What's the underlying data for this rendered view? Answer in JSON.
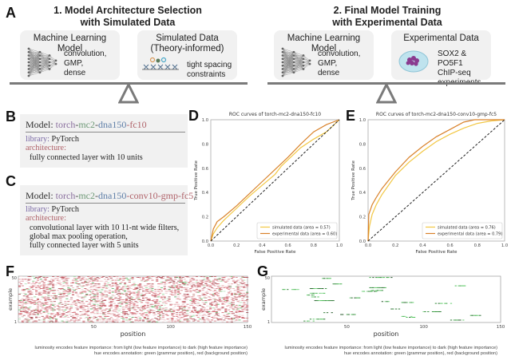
{
  "panel_letters": {
    "A": "A",
    "B": "B",
    "C": "C",
    "D": "D",
    "E": "E",
    "F": "F",
    "G": "G"
  },
  "stage1": {
    "title_line1": "1. Model Architecture Selection",
    "title_line2": "with Simulated Data",
    "model_box": {
      "title": "Machine Learning Model",
      "icon": "neural-network-icon",
      "lines": [
        "convolution,",
        "GMP,",
        "dense"
      ]
    },
    "data_box": {
      "title_line1": "Simulated Data",
      "title_line2": "(Theory-informed)",
      "icon": "dna-motifs-icon",
      "lines": [
        "tight spacing",
        "constraints"
      ]
    }
  },
  "stage2": {
    "title_line1": "2. Final Model Training",
    "title_line2": "with Experimental Data",
    "model_box": {
      "title": "Machine Learning Model",
      "icon": "neural-network-icon",
      "lines": [
        "convolution,",
        "GMP,",
        "dense"
      ]
    },
    "data_box": {
      "title": "Experimental Data",
      "icon": "cell-icon",
      "lines": [
        "SOX2 & PO5F1",
        "ChIP-seq",
        "experiments"
      ]
    }
  },
  "model_b": {
    "prefix": "Model: ",
    "name_parts": [
      {
        "text": "torch",
        "color": "#8a6f9e"
      },
      {
        "text": "-",
        "color": "#444444"
      },
      {
        "text": "mc2",
        "color": "#6f9a78"
      },
      {
        "text": "-",
        "color": "#444444"
      },
      {
        "text": "dna150",
        "color": "#5f7fa8"
      },
      {
        "text": "-fc10",
        "color": "#b0636a"
      }
    ],
    "library_key": "library:",
    "library_value": "PyTorch",
    "architecture_key": "architecture:",
    "architecture_lines": [
      "fully connected layer with 10 units"
    ]
  },
  "model_c": {
    "prefix": "Model: ",
    "name_parts": [
      {
        "text": "torch",
        "color": "#8a6f9e"
      },
      {
        "text": "-",
        "color": "#444444"
      },
      {
        "text": "mc2",
        "color": "#6f9a78"
      },
      {
        "text": "-",
        "color": "#444444"
      },
      {
        "text": "dna150",
        "color": "#5f7fa8"
      },
      {
        "text": "-conv10-gmp-fc5",
        "color": "#b0636a"
      }
    ],
    "library_key": "library:",
    "library_value": "PyTorch",
    "architecture_key": "architecture:",
    "architecture_lines": [
      "convolutional layer with 10 11-nt wide filters,",
      "global max pooling operation,",
      "fully connected layer with 5 units"
    ]
  },
  "chart_data": [
    {
      "id": "D",
      "type": "line",
      "title": "ROC curves of torch-mc2-dna150-fc10",
      "xlabel": "False Positive Rate",
      "ylabel": "True Positive Rate",
      "xlim": [
        0,
        1
      ],
      "ylim": [
        0,
        1
      ],
      "xticks": [
        "0.0",
        "0.2",
        "0.4",
        "0.6",
        "0.8",
        "1.0"
      ],
      "yticks": [
        "0.0",
        "0.2",
        "0.4",
        "0.6",
        "0.8",
        "1.0"
      ],
      "legend_position": "bottom-right",
      "grid": false,
      "series": [
        {
          "name": "simulated data (area = 0.57)",
          "color": "#f2c744",
          "x": [
            0,
            0.02,
            0.05,
            0.1,
            0.2,
            0.3,
            0.4,
            0.5,
            0.55,
            0.6,
            0.7,
            0.8,
            0.9,
            1.0
          ],
          "y": [
            0,
            0.06,
            0.11,
            0.17,
            0.27,
            0.37,
            0.46,
            0.55,
            0.62,
            0.67,
            0.77,
            0.84,
            0.9,
            1.0
          ]
        },
        {
          "name": "experimental data (area = 0.60)",
          "color": "#d9822b",
          "x": [
            0,
            0.02,
            0.05,
            0.1,
            0.2,
            0.3,
            0.4,
            0.5,
            0.6,
            0.7,
            0.8,
            0.9,
            1.0
          ],
          "y": [
            0,
            0.1,
            0.16,
            0.2,
            0.29,
            0.39,
            0.49,
            0.59,
            0.69,
            0.8,
            0.9,
            0.96,
            1.0
          ]
        },
        {
          "name": "chance",
          "color": "#222222",
          "dashed": true,
          "x": [
            0,
            1
          ],
          "y": [
            0,
            1
          ]
        }
      ]
    },
    {
      "id": "E",
      "type": "line",
      "title": "ROC curves of torch-mc2-dna150-conv10-gmp-fc5",
      "xlabel": "False Positive Rate",
      "ylabel": "True Positive Rate",
      "xlim": [
        0,
        1
      ],
      "ylim": [
        0,
        1
      ],
      "xticks": [
        "0.0",
        "0.2",
        "0.4",
        "0.6",
        "0.8",
        "1.0"
      ],
      "yticks": [
        "0.0",
        "0.2",
        "0.4",
        "0.6",
        "0.8",
        "1.0"
      ],
      "legend_position": "bottom-right",
      "grid": false,
      "series": [
        {
          "name": "simulated data (area = 0.76)",
          "color": "#f2c744",
          "x": [
            0,
            0.01,
            0.03,
            0.06,
            0.1,
            0.15,
            0.2,
            0.3,
            0.4,
            0.5,
            0.6,
            0.7,
            0.8,
            0.9,
            1.0
          ],
          "y": [
            0,
            0.12,
            0.22,
            0.3,
            0.38,
            0.46,
            0.54,
            0.65,
            0.74,
            0.82,
            0.88,
            0.93,
            0.97,
            0.99,
            1.0
          ]
        },
        {
          "name": "experimental data (area = 0.79)",
          "color": "#d9822b",
          "x": [
            0,
            0.005,
            0.03,
            0.06,
            0.1,
            0.15,
            0.2,
            0.3,
            0.4,
            0.5,
            0.6,
            0.7,
            0.78,
            0.9,
            1.0
          ],
          "y": [
            0,
            0.22,
            0.3,
            0.36,
            0.43,
            0.5,
            0.57,
            0.69,
            0.78,
            0.86,
            0.92,
            0.98,
            1.0,
            1.0,
            1.0
          ]
        },
        {
          "name": "chance",
          "color": "#222222",
          "dashed": true,
          "x": [
            0,
            1
          ],
          "y": [
            0,
            1
          ]
        }
      ]
    },
    {
      "id": "F",
      "type": "heatmap",
      "xlabel": "position",
      "ylabel": "example",
      "xlim": [
        1,
        150
      ],
      "ylim": [
        1,
        50
      ],
      "xticks": [
        "50",
        "100",
        "150"
      ],
      "yticks": [
        "1",
        "50"
      ],
      "color_scheme": "green = grammar position, red = background position; luminosity = feature importance",
      "pattern": "dense"
    },
    {
      "id": "G",
      "type": "heatmap",
      "xlabel": "position",
      "ylabel": "example",
      "xlim": [
        1,
        150
      ],
      "ylim": [
        1,
        50
      ],
      "xticks": [
        "50",
        "100",
        "150"
      ],
      "yticks": [
        "1",
        "50"
      ],
      "color_scheme": "green = grammar position, red = background position; luminosity = feature importance",
      "pattern": "sparse"
    }
  ],
  "heatmap_caption": {
    "line1": "luminosity encodes feature importance: from light (low feature importance) to dark (high feature importance)",
    "line2": "hue encodes annotation: green (grammar position), red (background position)"
  },
  "colors": {
    "simulated": "#f2c744",
    "experimental": "#d9822b",
    "box_bg": "#f1f1f1",
    "beam": "#7a7a7a",
    "grammar_green": "#2e7d32",
    "background_red": "#a32b2b"
  }
}
